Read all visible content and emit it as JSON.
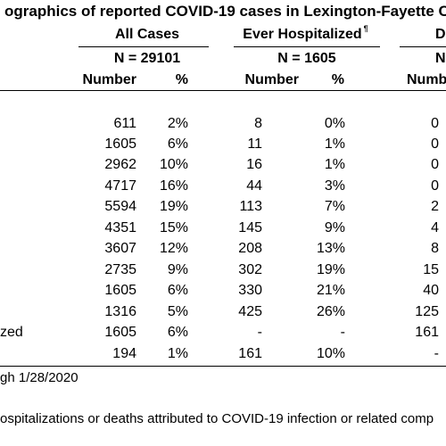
{
  "title": "ographics of reported COVID-19 cases in Lexington-Fayette Co",
  "groups": [
    {
      "label": "All Cases",
      "n": "N = 29101"
    },
    {
      "label": "Ever Hospitalized",
      "n": "N = 1605",
      "sup": "¶"
    },
    {
      "label": "D",
      "n": "N"
    }
  ],
  "subheaders": {
    "all_number": "Number",
    "all_pct": "%",
    "hosp_number": "Number",
    "hosp_pct": "%",
    "death_number": "Numb"
  },
  "rows": [
    {
      "label": "",
      "all_n": "611",
      "all_p": "2%",
      "hosp_n": "8",
      "hosp_p": "0%",
      "death_n": "0"
    },
    {
      "label": "",
      "all_n": "1605",
      "all_p": "6%",
      "hosp_n": "11",
      "hosp_p": "1%",
      "death_n": "0"
    },
    {
      "label": "",
      "all_n": "2962",
      "all_p": "10%",
      "hosp_n": "16",
      "hosp_p": "1%",
      "death_n": "0"
    },
    {
      "label": "",
      "all_n": "4717",
      "all_p": "16%",
      "hosp_n": "44",
      "hosp_p": "3%",
      "death_n": "0"
    },
    {
      "label": "",
      "all_n": "5594",
      "all_p": "19%",
      "hosp_n": "113",
      "hosp_p": "7%",
      "death_n": "2"
    },
    {
      "label": "",
      "all_n": "4351",
      "all_p": "15%",
      "hosp_n": "145",
      "hosp_p": "9%",
      "death_n": "4"
    },
    {
      "label": "",
      "all_n": "3607",
      "all_p": "12%",
      "hosp_n": "208",
      "hosp_p": "13%",
      "death_n": "8"
    },
    {
      "label": "",
      "all_n": "2735",
      "all_p": "9%",
      "hosp_n": "302",
      "hosp_p": "19%",
      "death_n": "15"
    },
    {
      "label": "",
      "all_n": "1605",
      "all_p": "6%",
      "hosp_n": "330",
      "hosp_p": "21%",
      "death_n": "40"
    },
    {
      "label": "",
      "all_n": "1316",
      "all_p": "5%",
      "hosp_n": "425",
      "hosp_p": "26%",
      "death_n": "125"
    },
    {
      "label": "zed",
      "all_n": "1605",
      "all_p": "6%",
      "hosp_n": "-",
      "hosp_p": "-",
      "death_n": "161"
    },
    {
      "label": "",
      "all_n": "194",
      "all_p": "1%",
      "hosp_n": "161",
      "hosp_p": "10%",
      "death_n": "-"
    }
  ],
  "footnotes": [
    "gh 1/28/2020",
    "ospitalizations or deaths attributed to COVID-19 infection or related comp"
  ]
}
